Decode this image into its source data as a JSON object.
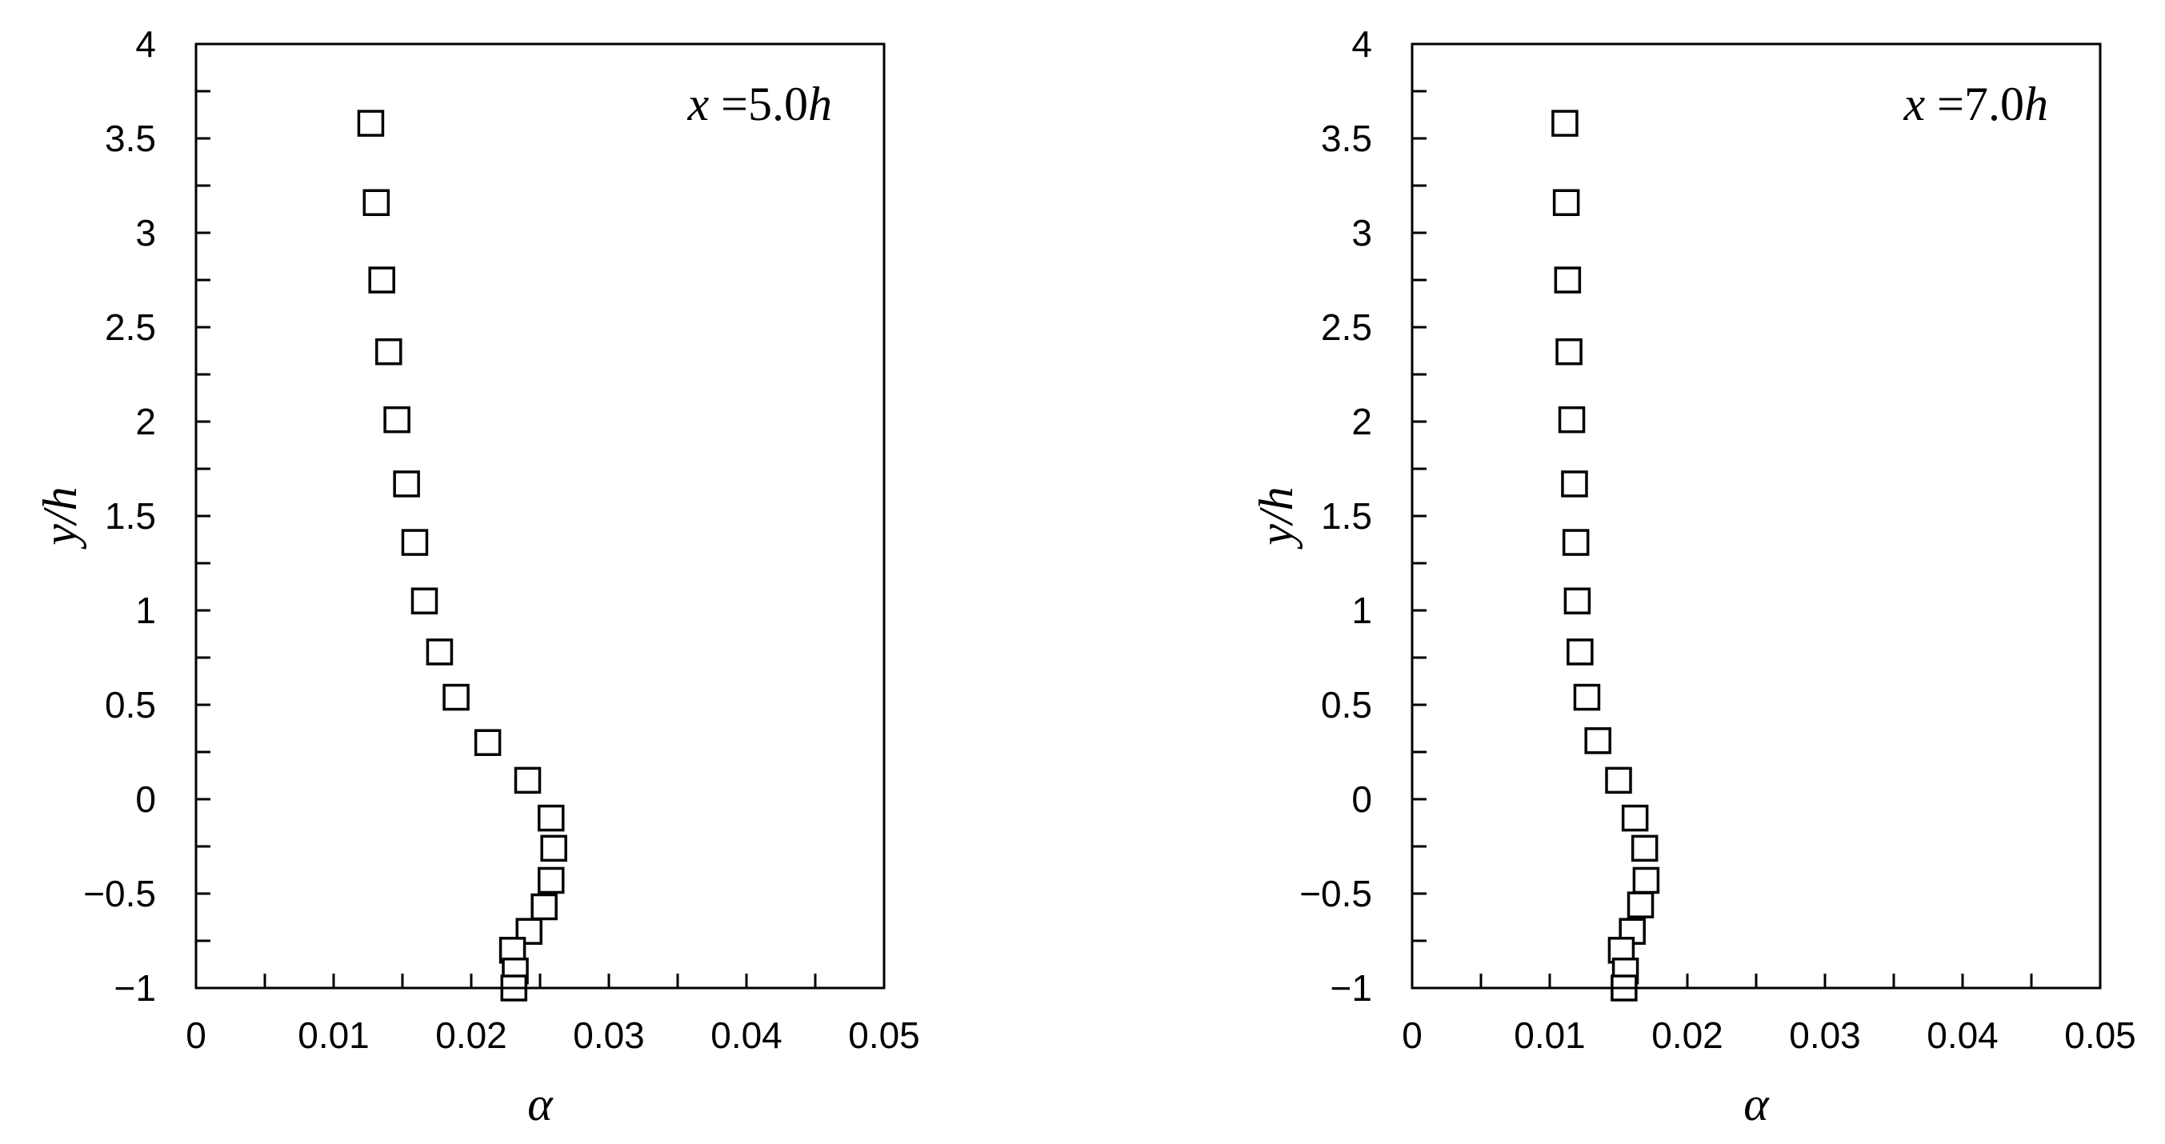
{
  "chart_data": [
    {
      "type": "scatter",
      "title": "",
      "annotation": {
        "prefix": "x",
        "equals": " =5.0",
        "suffix": "h"
      },
      "xlabel": "α",
      "ylabel": "y/h",
      "xlim": [
        0,
        0.05
      ],
      "ylim": [
        -1,
        4
      ],
      "xticks": [
        "0",
        "0.01",
        "0.02",
        "0.03",
        "0.04",
        "0.05"
      ],
      "yticks": [
        "4",
        "3.5",
        "3",
        "2.5",
        "2",
        "1.5",
        "1",
        "0.5",
        "0",
        "−0.5",
        "−1"
      ],
      "grid": false,
      "legend": "none",
      "marker": "open-square",
      "series": [
        {
          "x": [
            0.0127,
            0.0131,
            0.0135,
            0.014,
            0.0146,
            0.0153,
            0.0159,
            0.0166,
            0.0177,
            0.0189,
            0.0212,
            0.0241,
            0.0258,
            0.026,
            0.0258,
            0.0253,
            0.0242,
            0.023,
            0.0232,
            0.0231
          ],
          "y": [
            3.58,
            3.16,
            2.75,
            2.37,
            2.01,
            1.67,
            1.36,
            1.05,
            0.78,
            0.54,
            0.3,
            0.1,
            -0.1,
            -0.26,
            -0.43,
            -0.57,
            -0.7,
            -0.8,
            -0.91,
            -1.0
          ]
        }
      ]
    },
    {
      "type": "scatter",
      "title": "",
      "annotation": {
        "prefix": "x",
        "equals": " =7.0",
        "suffix": "h"
      },
      "xlabel": "α",
      "ylabel": "y/h",
      "xlim": [
        0,
        0.05
      ],
      "ylim": [
        -1,
        4
      ],
      "xticks": [
        "0",
        "0.01",
        "0.02",
        "0.03",
        "0.04",
        "0.05"
      ],
      "yticks": [
        "4",
        "3.5",
        "3",
        "2.5",
        "2",
        "1.5",
        "1",
        "0.5",
        "0",
        "−0.5",
        "−1"
      ],
      "grid": false,
      "legend": "none",
      "marker": "open-square",
      "series": [
        {
          "x": [
            0.0111,
            0.0112,
            0.0113,
            0.0114,
            0.0116,
            0.0118,
            0.0119,
            0.012,
            0.0122,
            0.0127,
            0.0135,
            0.015,
            0.0162,
            0.0169,
            0.017,
            0.0166,
            0.016,
            0.0152,
            0.0155,
            0.0154
          ],
          "y": [
            3.58,
            3.16,
            2.75,
            2.37,
            2.01,
            1.67,
            1.36,
            1.05,
            0.78,
            0.54,
            0.31,
            0.1,
            -0.1,
            -0.26,
            -0.43,
            -0.56,
            -0.7,
            -0.8,
            -0.91,
            -1.0
          ]
        }
      ]
    }
  ]
}
